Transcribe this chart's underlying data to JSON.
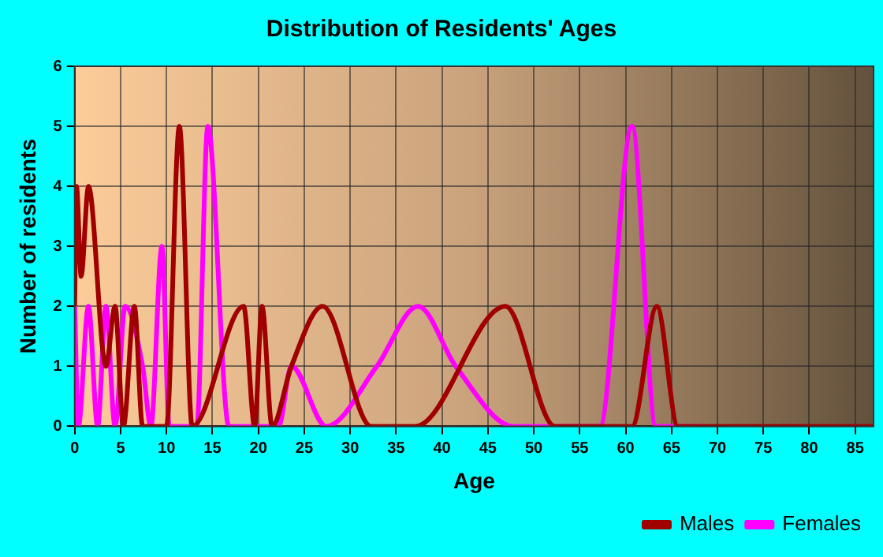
{
  "chart_data": {
    "type": "line",
    "title": "Distribution of Residents' Ages",
    "xlabel": "Age",
    "ylabel": "Number of residents",
    "xlim": [
      0,
      87
    ],
    "xticks": [
      0,
      5,
      10,
      15,
      20,
      25,
      30,
      35,
      40,
      45,
      50,
      55,
      60,
      65,
      70,
      75,
      80,
      85
    ],
    "ylim": [
      0,
      6
    ],
    "yticks": [
      0,
      1,
      2,
      3,
      4,
      5,
      6
    ],
    "grid": true,
    "legend": "bottom right",
    "marker": "none",
    "line_style": "solid",
    "series": [
      {
        "name": "Males",
        "color": "#a00000",
        "x": [
          0,
          0.2,
          0.7,
          1.5,
          3.4,
          4.4,
          5.3,
          6.5,
          7.4,
          10,
          11.4,
          12.8,
          18.4,
          19.6,
          20.4,
          21.5,
          23.6,
          27,
          32.3,
          37.1,
          46.9,
          52.3,
          60.7,
          63.4,
          65.7,
          87
        ],
        "values": [
          2,
          4,
          2.5,
          4,
          1,
          2,
          0,
          2,
          0,
          0,
          5,
          0,
          2,
          0,
          2,
          0,
          1,
          2,
          0,
          0,
          2,
          0,
          0,
          2,
          0,
          0
        ]
      },
      {
        "name": "Females",
        "color": "#ff00ff",
        "x": [
          0,
          0.4,
          1.5,
          2.5,
          3.4,
          4.4,
          5.5,
          7.4,
          8.3,
          9.5,
          10.3,
          13.3,
          14.5,
          16.8,
          22.2,
          23.6,
          27.4,
          32.9,
          37.4,
          41.5,
          47.8,
          57.2,
          60.7,
          63.3,
          68
        ],
        "values": [
          2,
          0,
          2,
          0,
          2,
          0,
          2,
          1,
          0,
          3,
          0,
          0,
          5,
          0,
          0,
          1,
          0,
          1,
          2,
          1,
          0,
          0,
          5,
          0,
          0
        ]
      }
    ]
  }
}
